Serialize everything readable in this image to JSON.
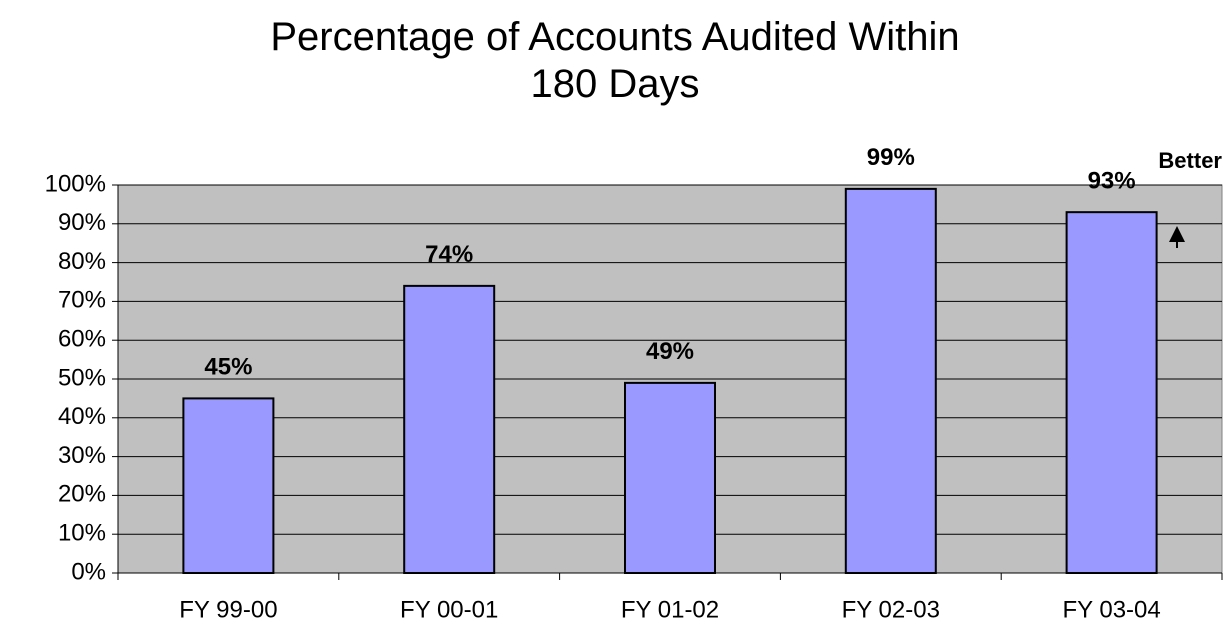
{
  "chart_data": {
    "type": "bar",
    "title": "Percentage of Accounts Audited Within 180 Days",
    "annotation": "Better",
    "categories": [
      "FY 99-00",
      "FY 00-01",
      "FY 01-02",
      "FY 02-03",
      "FY 03-04"
    ],
    "values": [
      45,
      74,
      49,
      99,
      93
    ],
    "value_labels": [
      "45%",
      "74%",
      "49%",
      "99%",
      "93%"
    ],
    "color": "#9999ff",
    "ylim": [
      0,
      100
    ],
    "yticks": [
      {
        "value": 0,
        "label": "0%"
      },
      {
        "value": 10,
        "label": "10%"
      },
      {
        "value": 20,
        "label": "20%"
      },
      {
        "value": 30,
        "label": "30%"
      },
      {
        "value": 40,
        "label": "40%"
      },
      {
        "value": 50,
        "label": "50%"
      },
      {
        "value": 60,
        "label": "60%"
      },
      {
        "value": 70,
        "label": "70%"
      },
      {
        "value": 80,
        "label": "80%"
      },
      {
        "value": 90,
        "label": "90%"
      },
      {
        "value": 100,
        "label": "100%"
      }
    ],
    "grid": true
  }
}
